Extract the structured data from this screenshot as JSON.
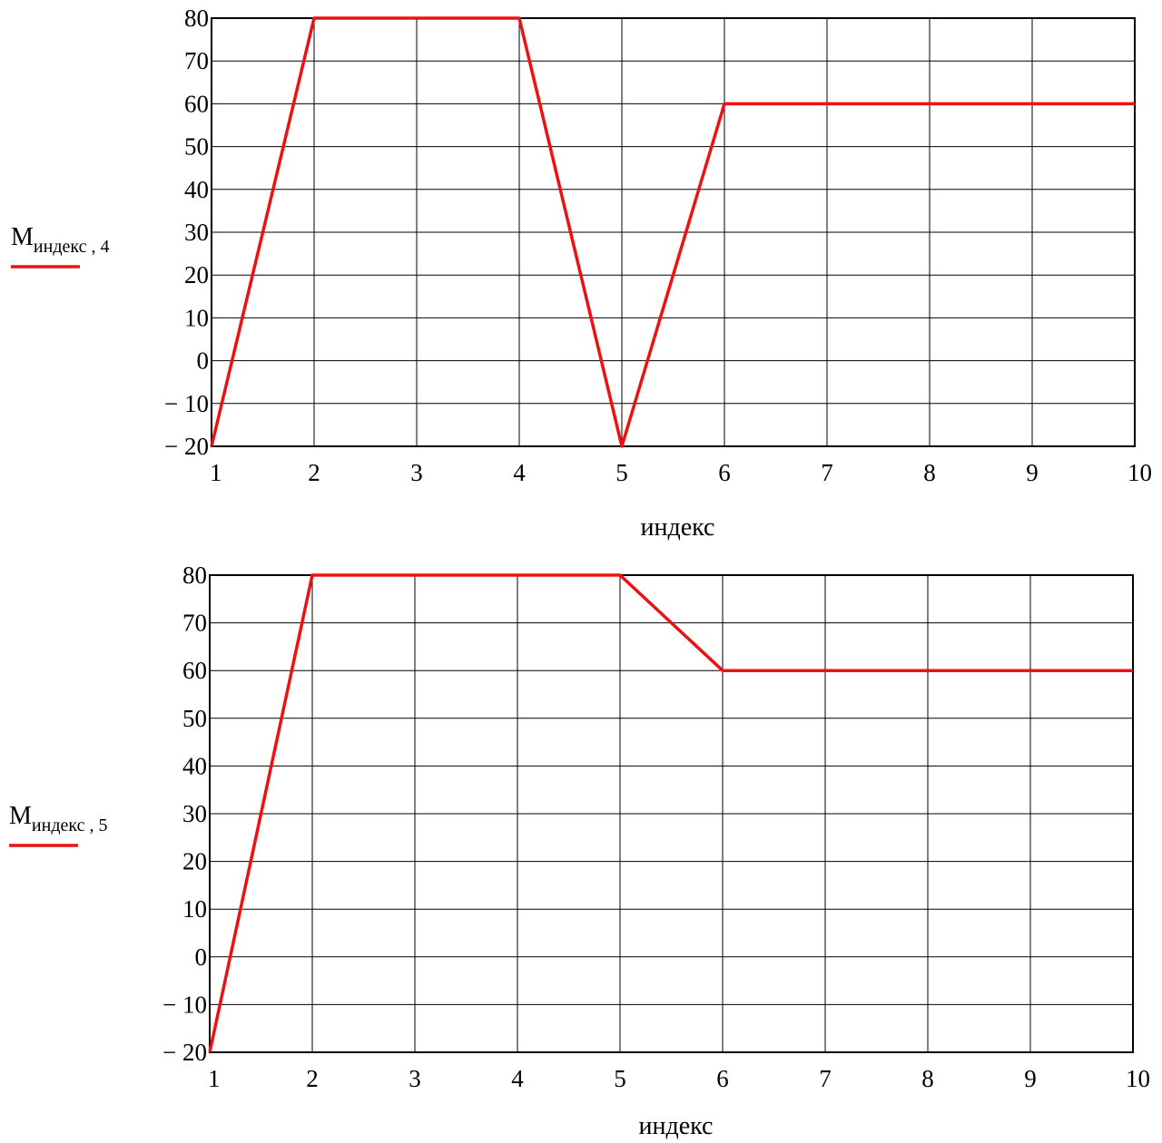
{
  "colors": {
    "series": "#ee1111",
    "axis": "#000000",
    "background": "#ffffff"
  },
  "chart_data": [
    {
      "type": "line",
      "xlabel": "индекс",
      "ylabel_main": "M",
      "ylabel_sub": "индекс , 4",
      "xticks": [
        1,
        2,
        3,
        4,
        5,
        6,
        7,
        8,
        9,
        10
      ],
      "yticks": [
        -20,
        -10,
        0,
        10,
        20,
        30,
        40,
        50,
        60,
        70,
        80
      ],
      "xlim": [
        1,
        10
      ],
      "ylim": [
        -20,
        80
      ],
      "grid": true,
      "legend": "left",
      "series": [
        {
          "x": [
            1,
            2,
            3,
            4,
            5,
            6,
            7,
            8,
            9,
            10
          ],
          "values": [
            -20,
            80,
            80,
            80,
            -20,
            60,
            60,
            60,
            60,
            60
          ]
        }
      ]
    },
    {
      "type": "line",
      "xlabel": "индекс",
      "ylabel_main": "M",
      "ylabel_sub": "индекс , 5",
      "xticks": [
        1,
        2,
        3,
        4,
        5,
        6,
        7,
        8,
        9,
        10
      ],
      "yticks": [
        -20,
        -10,
        0,
        10,
        20,
        30,
        40,
        50,
        60,
        70,
        80
      ],
      "xlim": [
        1,
        10
      ],
      "ylim": [
        -20,
        80
      ],
      "grid": true,
      "legend": "left",
      "series": [
        {
          "x": [
            1,
            2,
            3,
            4,
            5,
            6,
            7,
            8,
            9,
            10
          ],
          "values": [
            -20,
            80,
            80,
            80,
            80,
            60,
            60,
            60,
            60,
            60
          ]
        }
      ]
    }
  ]
}
